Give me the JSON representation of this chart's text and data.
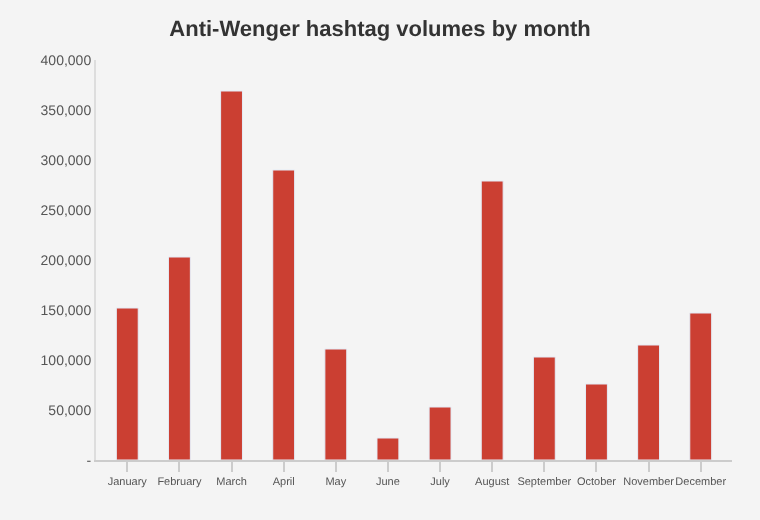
{
  "chart_data": {
    "type": "bar",
    "title": "Anti-Wenger hashtag volumes by month",
    "categories": [
      "January",
      "February",
      "March",
      "April",
      "May",
      "June",
      "July",
      "August",
      "September",
      "October",
      "November",
      "December"
    ],
    "values": [
      152000,
      203000,
      369000,
      290000,
      111000,
      22000,
      53000,
      279000,
      103000,
      76000,
      115000,
      147000
    ],
    "color": "#cb3f32",
    "ylim": [
      0,
      400000
    ],
    "yticks": [
      {
        "value": 0,
        "label": "-"
      },
      {
        "value": 50000,
        "label": "50,000"
      },
      {
        "value": 100000,
        "label": "100,000"
      },
      {
        "value": 150000,
        "label": "150,000"
      },
      {
        "value": 200000,
        "label": "200,000"
      },
      {
        "value": 250000,
        "label": "250,000"
      },
      {
        "value": 300000,
        "label": "300,000"
      },
      {
        "value": 350000,
        "label": "350,000"
      },
      {
        "value": 400000,
        "label": "400,000"
      }
    ],
    "grid": false
  }
}
